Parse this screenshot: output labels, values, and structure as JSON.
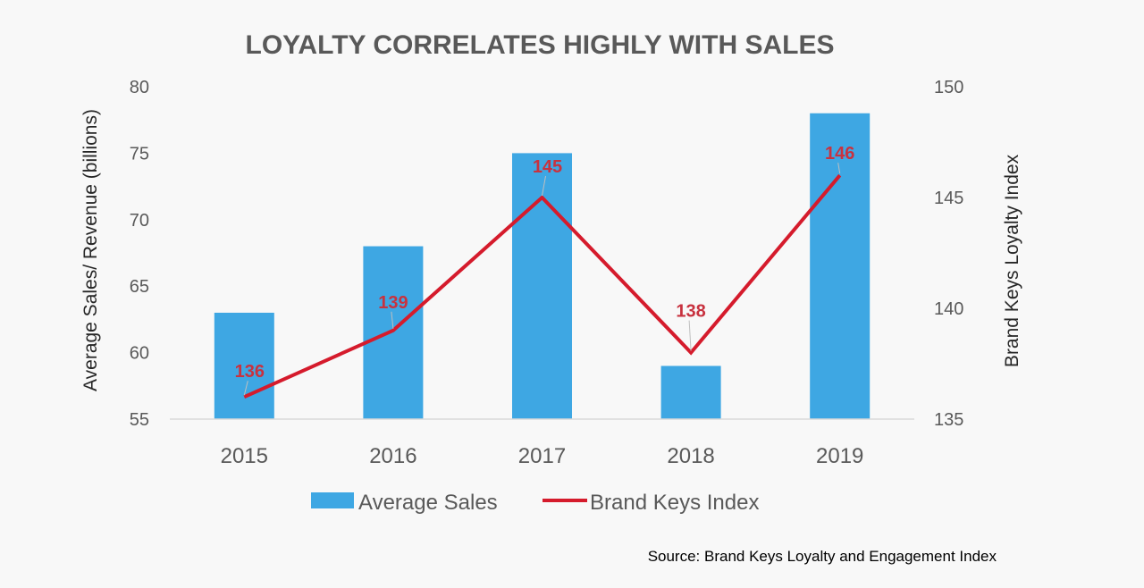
{
  "chart_data": {
    "type": "bar",
    "title": "LOYALTY CORRELATES HIGHLY WITH SALES",
    "categories": [
      "2015",
      "2016",
      "2017",
      "2018",
      "2019"
    ],
    "series": [
      {
        "name": "Average Sales",
        "type": "bar",
        "axis": "left",
        "values": [
          63,
          68,
          75,
          59,
          78
        ]
      },
      {
        "name": "Brand Keys Index",
        "type": "line",
        "axis": "right",
        "values": [
          136,
          139,
          145,
          138,
          146
        ]
      }
    ],
    "data_labels": [
      "136",
      "139",
      "145",
      "138",
      "146"
    ],
    "ylabel": "Average Sales/ Revenue (billions)",
    "y2label": "Brand Keys Loyalty Index",
    "ylim": [
      55,
      80
    ],
    "y2lim": [
      135,
      150
    ],
    "yticks": [
      "55",
      "60",
      "65",
      "70",
      "75",
      "80"
    ],
    "y2ticks": [
      "135",
      "140",
      "145",
      "150"
    ],
    "grid": false,
    "legend_position": "bottom",
    "colors": {
      "bar": "#3ea7e3",
      "line": "#d51b2c",
      "data_label": "#c8323f"
    }
  },
  "source": "Source: Brand Keys Loyalty and Engagement Index"
}
